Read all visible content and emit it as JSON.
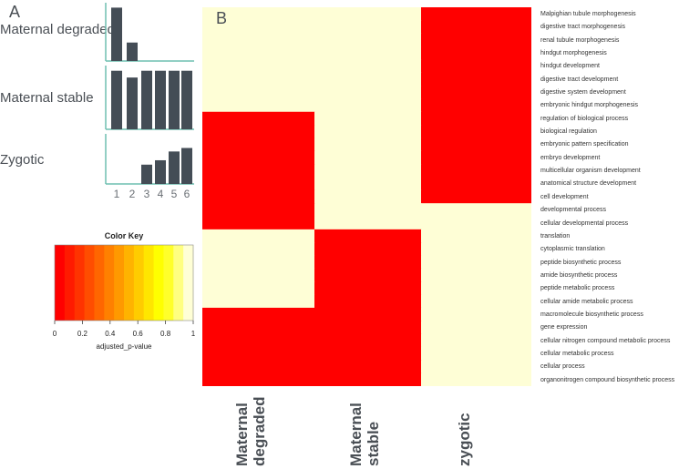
{
  "chart_data": [
    {
      "type": "bar",
      "panel_label": "A",
      "categories": [
        "1",
        "2",
        "3",
        "4",
        "5",
        "6"
      ],
      "series": [
        {
          "name": "Maternal degraded",
          "values": [
            52,
            18,
            0,
            0,
            0,
            0
          ]
        },
        {
          "name": "Maternal stable",
          "values": [
            52,
            46,
            52,
            52,
            52,
            52
          ]
        },
        {
          "name": "Zygotic",
          "values": [
            0,
            0,
            22,
            27,
            37,
            41
          ]
        }
      ],
      "axis_color": "#6fbfb0",
      "bar_color": "#444d56"
    },
    {
      "type": "heatmap",
      "panel_label": "B",
      "columns": [
        [
          "Maternal",
          "degraded"
        ],
        [
          "Maternal",
          "stable"
        ],
        [
          "zygotic"
        ]
      ],
      "rows": [
        "Malpighian tubule morphogenesis",
        "digestive tract morphogenesis",
        "renal tubule morphogenesis",
        "hindgut morphogenesis",
        "hindgut development",
        "digestive tract development",
        "digestive system development",
        "embryonic hindgut morphogenesis",
        "regulation of biological process",
        "biological regulation",
        "embryonic pattern specification",
        "embryo development",
        "multicellular organism development",
        "anatomical structure development",
        "cell development",
        "developmental process",
        "cellular developmental process",
        "translation",
        "cytoplasmic translation",
        "peptide biosynthetic process",
        "amide biosynthetic process",
        "peptide metabolic process",
        "cellular amide metabolic process",
        "macromolecule biosynthetic process",
        "gene expression",
        "cellular nitrogen compound metabolic process",
        "cellular metabolic process",
        "cellular process",
        "organonitrogen compound biosynthetic process"
      ],
      "values": [
        [
          1,
          1,
          0
        ],
        [
          1,
          1,
          0
        ],
        [
          1,
          1,
          0
        ],
        [
          1,
          1,
          0
        ],
        [
          1,
          1,
          0
        ],
        [
          1,
          1,
          0
        ],
        [
          1,
          1,
          0
        ],
        [
          1,
          1,
          0
        ],
        [
          0,
          1,
          0
        ],
        [
          0,
          1,
          0
        ],
        [
          0,
          1,
          0
        ],
        [
          0,
          1,
          0
        ],
        [
          0,
          1,
          0
        ],
        [
          0,
          1,
          0
        ],
        [
          0,
          1,
          0
        ],
        [
          0,
          1,
          1
        ],
        [
          0,
          1,
          1
        ],
        [
          1,
          0,
          1
        ],
        [
          1,
          0,
          1
        ],
        [
          1,
          0,
          1
        ],
        [
          1,
          0,
          1
        ],
        [
          1,
          0,
          1
        ],
        [
          1,
          0,
          1
        ],
        [
          0,
          0,
          1
        ],
        [
          0,
          0,
          1
        ],
        [
          0,
          0,
          1
        ],
        [
          0,
          0,
          1
        ],
        [
          0,
          0,
          1
        ],
        [
          0,
          0,
          1
        ]
      ],
      "color_key": {
        "title": "Color Key",
        "xlabel": "adjusted_p-value",
        "ticks": [
          "0",
          "0.2",
          "0.4",
          "0.6",
          "0.8",
          "1"
        ],
        "range": [
          0,
          1
        ],
        "colors": [
          "#ff0000",
          "#ff1a00",
          "#ff3300",
          "#ff4d00",
          "#ff6600",
          "#ff8000",
          "#ff9900",
          "#ffb300",
          "#ffcc00",
          "#ffe600",
          "#ffff00",
          "#ffff2a",
          "#ffff80",
          "#ffffd5"
        ]
      },
      "low_color": "#ff0000",
      "high_color": "#fefed6"
    }
  ]
}
